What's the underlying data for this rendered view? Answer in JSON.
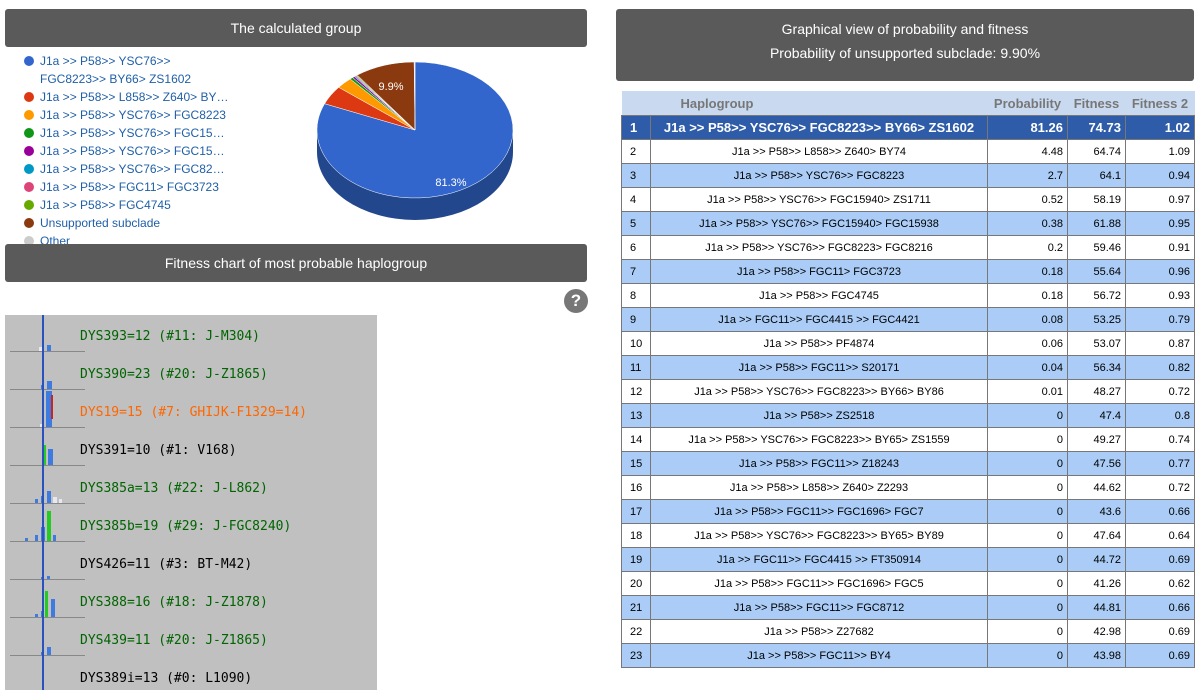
{
  "left_header": {
    "title": "The calculated group"
  },
  "legend": [
    {
      "label": "J1a >> P58>> YSC76>> FGC8223>> BY66> ZS1602",
      "color": "#3366cc",
      "wrap": true
    },
    {
      "label": "J1a >> P58>> L858>> Z640> BY…",
      "color": "#dc3912"
    },
    {
      "label": "J1a >> P58>> YSC76>> FGC8223",
      "color": "#ff9900"
    },
    {
      "label": "J1a >> P58>> YSC76>> FGC15…",
      "color": "#109618"
    },
    {
      "label": "J1a >> P58>> YSC76>> FGC15…",
      "color": "#990099"
    },
    {
      "label": "J1a >> P58>> YSC76>> FGC82…",
      "color": "#0099c6"
    },
    {
      "label": "J1a >> P58>> FGC11> FGC3723",
      "color": "#dd4477"
    },
    {
      "label": "J1a >> P58>> FGC4745",
      "color": "#66aa00"
    },
    {
      "label": "Unsupported subclade",
      "color": "#8b3a0f"
    },
    {
      "label": "Other",
      "color": "#cccccc"
    }
  ],
  "pie": {
    "label_main": "81.3%",
    "label_unsupported": "9.9%",
    "slices": [
      {
        "name": "J1a >> P58>> YSC76>> FGC8223>> BY66> ZS1602",
        "value": 81.3,
        "color": "#3366cc",
        "side": "#22478c"
      },
      {
        "name": "J1a >> P58>> L858>> Z640> BY74",
        "value": 4.48,
        "color": "#dc3912",
        "side": "#962708"
      },
      {
        "name": "J1a >> P58>> YSC76>> FGC8223",
        "value": 2.7,
        "color": "#ff9900",
        "side": "#b36b00"
      },
      {
        "name": "J1a >> P58>> YSC76>> FGC15940> ZS1711",
        "value": 0.52,
        "color": "#109618",
        "side": "#0b6a11"
      },
      {
        "name": "J1a >> P58>> YSC76>> FGC15940> FGC15938",
        "value": 0.38,
        "color": "#990099",
        "side": "#6b006b"
      },
      {
        "name": "J1a >> P58>> YSC76>> FGC8223> FGC8216",
        "value": 0.2,
        "color": "#0099c6",
        "side": "#006b8b"
      },
      {
        "name": "J1a >> P58>> FGC11> FGC3723",
        "value": 0.18,
        "color": "#dd4477",
        "side": "#9b3053"
      },
      {
        "name": "J1a >> P58>> FGC4745",
        "value": 0.18,
        "color": "#66aa00",
        "side": "#477700"
      },
      {
        "name": "Unsupported subclade",
        "value": 9.9,
        "color": "#8b3a0f",
        "side": "#5e270a"
      },
      {
        "name": "Other",
        "value": 0.14,
        "color": "#cccccc",
        "side": "#999999"
      }
    ]
  },
  "fitness_header": {
    "title": "Fitness chart of most probable haplogroup"
  },
  "fitness_rows": [
    {
      "text": "DYS393=12 (#11: J-M304)",
      "color": "#006400"
    },
    {
      "text": "DYS390=23 (#20: J-Z1865)",
      "color": "#006400"
    },
    {
      "text": "DYS19=15 (#7: GHIJK-F1329=14)",
      "color": "#ff6600"
    },
    {
      "text": "DYS391=10 (#1: V168)",
      "color": "#000000"
    },
    {
      "text": "DYS385a=13 (#22: J-L862)",
      "color": "#006400"
    },
    {
      "text": "DYS385b=19 (#29: J-FGC8240)",
      "color": "#006400"
    },
    {
      "text": "DYS426=11 (#3: BT-M42)",
      "color": "#000000"
    },
    {
      "text": "DYS388=16 (#18: J-Z1878)",
      "color": "#006400"
    },
    {
      "text": "DYS439=11 (#20: J-Z1865)",
      "color": "#006400"
    },
    {
      "text": "DYS389i=13 (#0: L1090)",
      "color": "#000000"
    }
  ],
  "right_header": {
    "title": "Graphical view of probability and fitness",
    "subtitle": "Probability of unsupported subclade: 9.90%"
  },
  "table": {
    "columns": [
      "",
      "Haplogroup",
      "Probability",
      "Fitness",
      "Fitness 2"
    ],
    "rows": [
      [
        "1",
        "J1a >> P58>> YSC76>> FGC8223>> BY66> ZS1602",
        "81.26",
        "74.73",
        "1.02"
      ],
      [
        "2",
        "J1a >> P58>> L858>> Z640> BY74",
        "4.48",
        "64.74",
        "1.09"
      ],
      [
        "3",
        "J1a >> P58>> YSC76>> FGC8223",
        "2.7",
        "64.1",
        "0.94"
      ],
      [
        "4",
        "J1a >> P58>> YSC76>> FGC15940> ZS1711",
        "0.52",
        "58.19",
        "0.97"
      ],
      [
        "5",
        "J1a >> P58>> YSC76>> FGC15940> FGC15938",
        "0.38",
        "61.88",
        "0.95"
      ],
      [
        "6",
        "J1a >> P58>> YSC76>> FGC8223> FGC8216",
        "0.2",
        "59.46",
        "0.91"
      ],
      [
        "7",
        "J1a >> P58>> FGC11> FGC3723",
        "0.18",
        "55.64",
        "0.96"
      ],
      [
        "8",
        "J1a >> P58>> FGC4745",
        "0.18",
        "56.72",
        "0.93"
      ],
      [
        "9",
        "J1a >> FGC11>> FGC4415 >> FGC4421",
        "0.08",
        "53.25",
        "0.79"
      ],
      [
        "10",
        "J1a >> P58>> PF4874",
        "0.06",
        "53.07",
        "0.87"
      ],
      [
        "11",
        "J1a >> P58>> FGC11>> S20171",
        "0.04",
        "56.34",
        "0.82"
      ],
      [
        "12",
        "J1a >> P58>> YSC76>> FGC8223>> BY66> BY86",
        "0.01",
        "48.27",
        "0.72"
      ],
      [
        "13",
        "J1a >> P58>> ZS2518",
        "0",
        "47.4",
        "0.8"
      ],
      [
        "14",
        "J1a >> P58>> YSC76>> FGC8223>> BY65> ZS1559",
        "0",
        "49.27",
        "0.74"
      ],
      [
        "15",
        "J1a >> P58>> FGC11>> Z18243",
        "0",
        "47.56",
        "0.77"
      ],
      [
        "16",
        "J1a >> P58>> L858>> Z640> Z2293",
        "0",
        "44.62",
        "0.72"
      ],
      [
        "17",
        "J1a >> P58>> FGC11>> FGC1696> FGC7",
        "0",
        "43.6",
        "0.66"
      ],
      [
        "18",
        "J1a >> P58>> YSC76>> FGC8223>> BY65> BY89",
        "0",
        "47.64",
        "0.64"
      ],
      [
        "19",
        "J1a >> FGC11>> FGC4415 >> FT350914",
        "0",
        "44.72",
        "0.69"
      ],
      [
        "20",
        "J1a >> P58>> FGC11>> FGC1696> FGC5",
        "0",
        "41.26",
        "0.62"
      ],
      [
        "21",
        "J1a >> P58>> FGC11>> FGC8712",
        "0",
        "44.81",
        "0.66"
      ],
      [
        "22",
        "J1a >> P58>> Z27682",
        "0",
        "42.98",
        "0.69"
      ],
      [
        "23",
        "J1a >> P58>> FGC11>> BY4",
        "0",
        "43.98",
        "0.69"
      ]
    ]
  }
}
